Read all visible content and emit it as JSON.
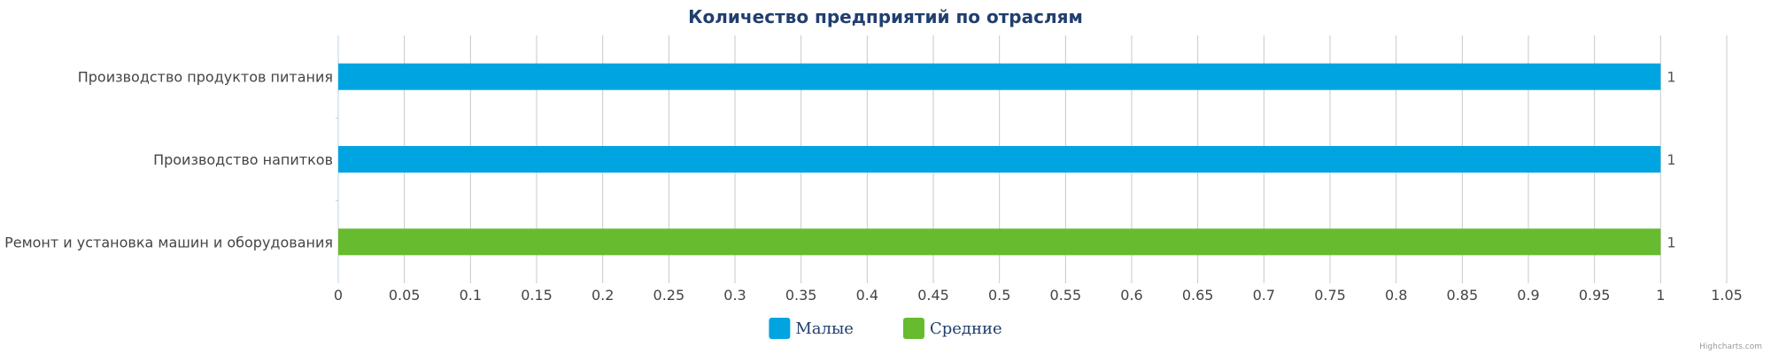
{
  "chart_data": {
    "type": "bar",
    "orientation": "horizontal",
    "title": "Количество предприятий по отраслям",
    "categories": [
      "Производство продуктов питания",
      "Производство напитков",
      "Ремонт и установка машин и оборудования"
    ],
    "series": [
      {
        "name": "Малые",
        "color": "#00a4e0",
        "values": [
          1,
          1,
          null
        ]
      },
      {
        "name": "Средние",
        "color": "#67bb2e",
        "values": [
          null,
          null,
          1
        ]
      }
    ],
    "xlim": [
      0,
      1.05
    ],
    "ticks": [
      "0",
      "0.05",
      "0.1",
      "0.15",
      "0.2",
      "0.25",
      "0.3",
      "0.35",
      "0.4",
      "0.45",
      "0.5",
      "0.55",
      "0.6",
      "0.65",
      "0.7",
      "0.75",
      "0.8",
      "0.85",
      "0.9",
      "0.95",
      "1",
      "1.05"
    ],
    "grid": true,
    "legend_position": "bottom-center",
    "credits": "Highcharts.com"
  }
}
